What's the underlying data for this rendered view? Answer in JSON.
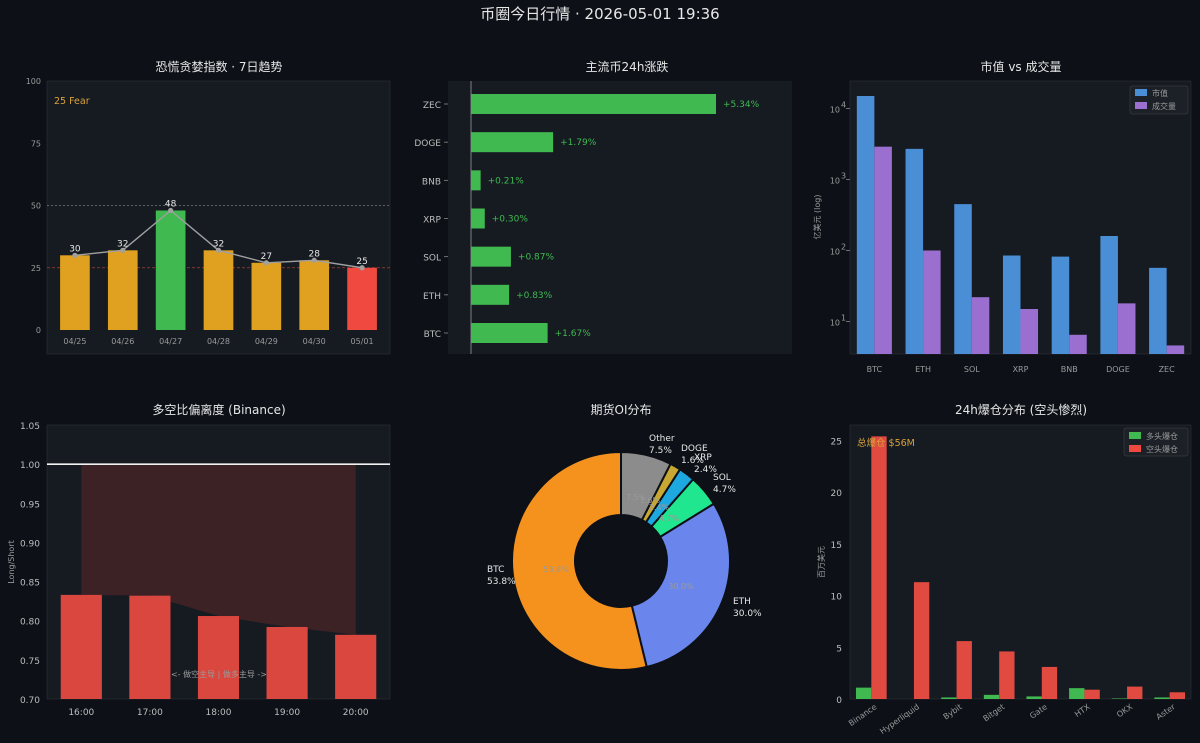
{
  "page_title": "币圈今日行情 · 2026-05-01 19:36",
  "colors": {
    "bg": "#0d1117",
    "panel": "#161b22",
    "orange": "#f0a020",
    "green": "#3fb950",
    "red": "#f04a40",
    "blue": "#4a8fd6",
    "purple": "#9b6fd0"
  },
  "chart_data": [
    {
      "id": "fear_greed",
      "type": "bar",
      "title": "恐慌贪婪指数 · 7日趋势",
      "categories": [
        "04/25",
        "04/26",
        "04/27",
        "04/28",
        "04/29",
        "04/30",
        "05/01"
      ],
      "values": [
        30,
        32,
        48,
        32,
        27,
        28,
        25
      ],
      "bar_colors": [
        "#e0a020",
        "#e0a020",
        "#3fb950",
        "#e0a020",
        "#e0a020",
        "#e0a020",
        "#f04a40"
      ],
      "overlay_line": true,
      "reference_lines": [
        50,
        25
      ],
      "annotation": "25 Fear",
      "ylim": [
        0,
        100
      ],
      "yticks": [
        "0",
        "25",
        "50",
        "75",
        "100"
      ]
    },
    {
      "id": "change_24h",
      "type": "bar",
      "orientation": "horizontal",
      "title": "主流币24h涨跌",
      "categories": [
        "ZEC",
        "DOGE",
        "BNB",
        "XRP",
        "SOL",
        "ETH",
        "BTC"
      ],
      "values": [
        5.34,
        1.79,
        0.21,
        0.3,
        0.87,
        0.83,
        1.67
      ],
      "labels": [
        "+5.34%",
        "+1.79%",
        "+0.21%",
        "+0.30%",
        "+0.87%",
        "+0.83%",
        "+1.67%"
      ]
    },
    {
      "id": "mcap_volume",
      "type": "bar",
      "title": "市值 vs 成交量",
      "ylabel": "亿美元 (log)",
      "yscale": "log",
      "ylim": [
        4,
        20000
      ],
      "categories": [
        "BTC",
        "ETH",
        "SOL",
        "XRP",
        "BNB",
        "DOGE",
        "ZEC"
      ],
      "series": [
        {
          "name": "市值",
          "values": [
            15000,
            2700,
            450,
            85,
            82,
            160,
            57
          ]
        },
        {
          "name": "成交量",
          "values": [
            2900,
            100,
            22,
            15,
            6.5,
            18,
            4.6
          ]
        }
      ],
      "legend": "top-right"
    },
    {
      "id": "long_short",
      "type": "bar",
      "title": "多空比偏离度 (Binance)",
      "ylabel": "Long/Short",
      "categories": [
        "16:00",
        "17:00",
        "18:00",
        "19:00",
        "20:00"
      ],
      "values": [
        0.833,
        0.832,
        0.806,
        0.792,
        0.782
      ],
      "reference_line": 1.0,
      "ylim": [
        0.7,
        1.05
      ],
      "yticks": [
        "0.70",
        "0.75",
        "0.80",
        "0.85",
        "0.90",
        "0.95",
        "1.00",
        "1.05"
      ],
      "annotation": "<- 做空主导 | 做多主导 ->"
    },
    {
      "id": "oi_distribution",
      "type": "pie",
      "title": "期货OI分布",
      "slices": [
        {
          "name": "BTC",
          "value": 53.8,
          "pct": "53.8%",
          "color": "#f5921e"
        },
        {
          "name": "ETH",
          "value": 30.0,
          "pct": "30.0%",
          "color": "#6a86ec"
        },
        {
          "name": "SOL",
          "value": 4.7,
          "pct": "4.7%",
          "color": "#20e690"
        },
        {
          "name": "XRP",
          "value": 2.4,
          "pct": "2.4%",
          "color": "#1ea8e0"
        },
        {
          "name": "DOGE",
          "value": 1.6,
          "pct": "1.6%",
          "color": "#c8a832"
        },
        {
          "name": "Other",
          "value": 7.5,
          "pct": "7.5%",
          "color": "#8c8c8c"
        }
      ]
    },
    {
      "id": "liquidations",
      "type": "bar",
      "title": "24h爆仓分布 (空头惨烈)",
      "ylabel": "百万美元",
      "categories": [
        "Binance",
        "Hyperliquid",
        "Bybit",
        "Bitget",
        "Gate",
        "HTX",
        "OKX",
        "Aster"
      ],
      "series": [
        {
          "name": "多头爆仓",
          "values": [
            1.1,
            0.0,
            0.15,
            0.4,
            0.25,
            1.05,
            0.05,
            0.15
          ]
        },
        {
          "name": "空头爆仓",
          "values": [
            25.4,
            11.3,
            5.6,
            4.6,
            3.1,
            0.9,
            1.2,
            0.65
          ]
        }
      ],
      "annotation": "总爆仓 $56M",
      "ylim": [
        0,
        26.5
      ],
      "yticks": [
        "0",
        "5",
        "10",
        "15",
        "20",
        "25"
      ],
      "legend": "top-right"
    }
  ]
}
